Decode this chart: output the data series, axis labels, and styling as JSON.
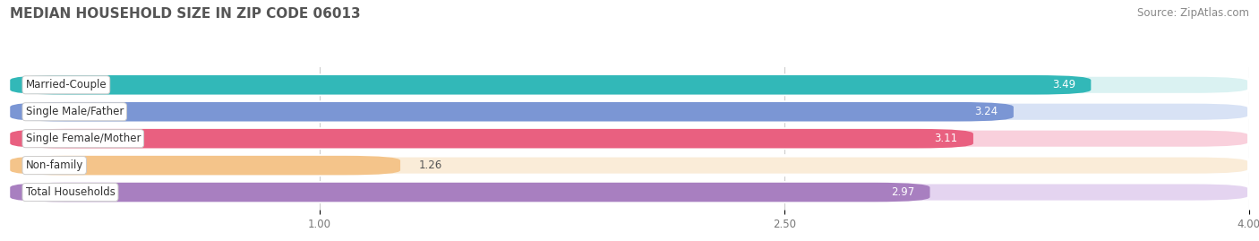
{
  "title": "MEDIAN HOUSEHOLD SIZE IN ZIP CODE 06013",
  "source": "Source: ZipAtlas.com",
  "categories": [
    "Married-Couple",
    "Single Male/Father",
    "Single Female/Mother",
    "Non-family",
    "Total Households"
  ],
  "values": [
    3.49,
    3.24,
    3.11,
    1.26,
    2.97
  ],
  "bar_colors": [
    "#32b8b8",
    "#7b96d4",
    "#e96080",
    "#f4c48a",
    "#a87fc0"
  ],
  "bar_bg_colors": [
    "#daf2f2",
    "#d8e2f5",
    "#f9d0dc",
    "#faecd8",
    "#e4d4f0"
  ],
  "label_colors": [
    "#ffffff",
    "#ffffff",
    "#ffffff",
    "#555555",
    "#ffffff"
  ],
  "xlim": [
    0,
    4.0
  ],
  "xticks": [
    1.0,
    2.5,
    4.0
  ],
  "title_fontsize": 11,
  "source_fontsize": 8.5,
  "label_fontsize": 8.5,
  "value_fontsize": 8.5,
  "tick_fontsize": 8.5,
  "background_color": "#ffffff",
  "bar_row_bg": "#f0f0f5"
}
